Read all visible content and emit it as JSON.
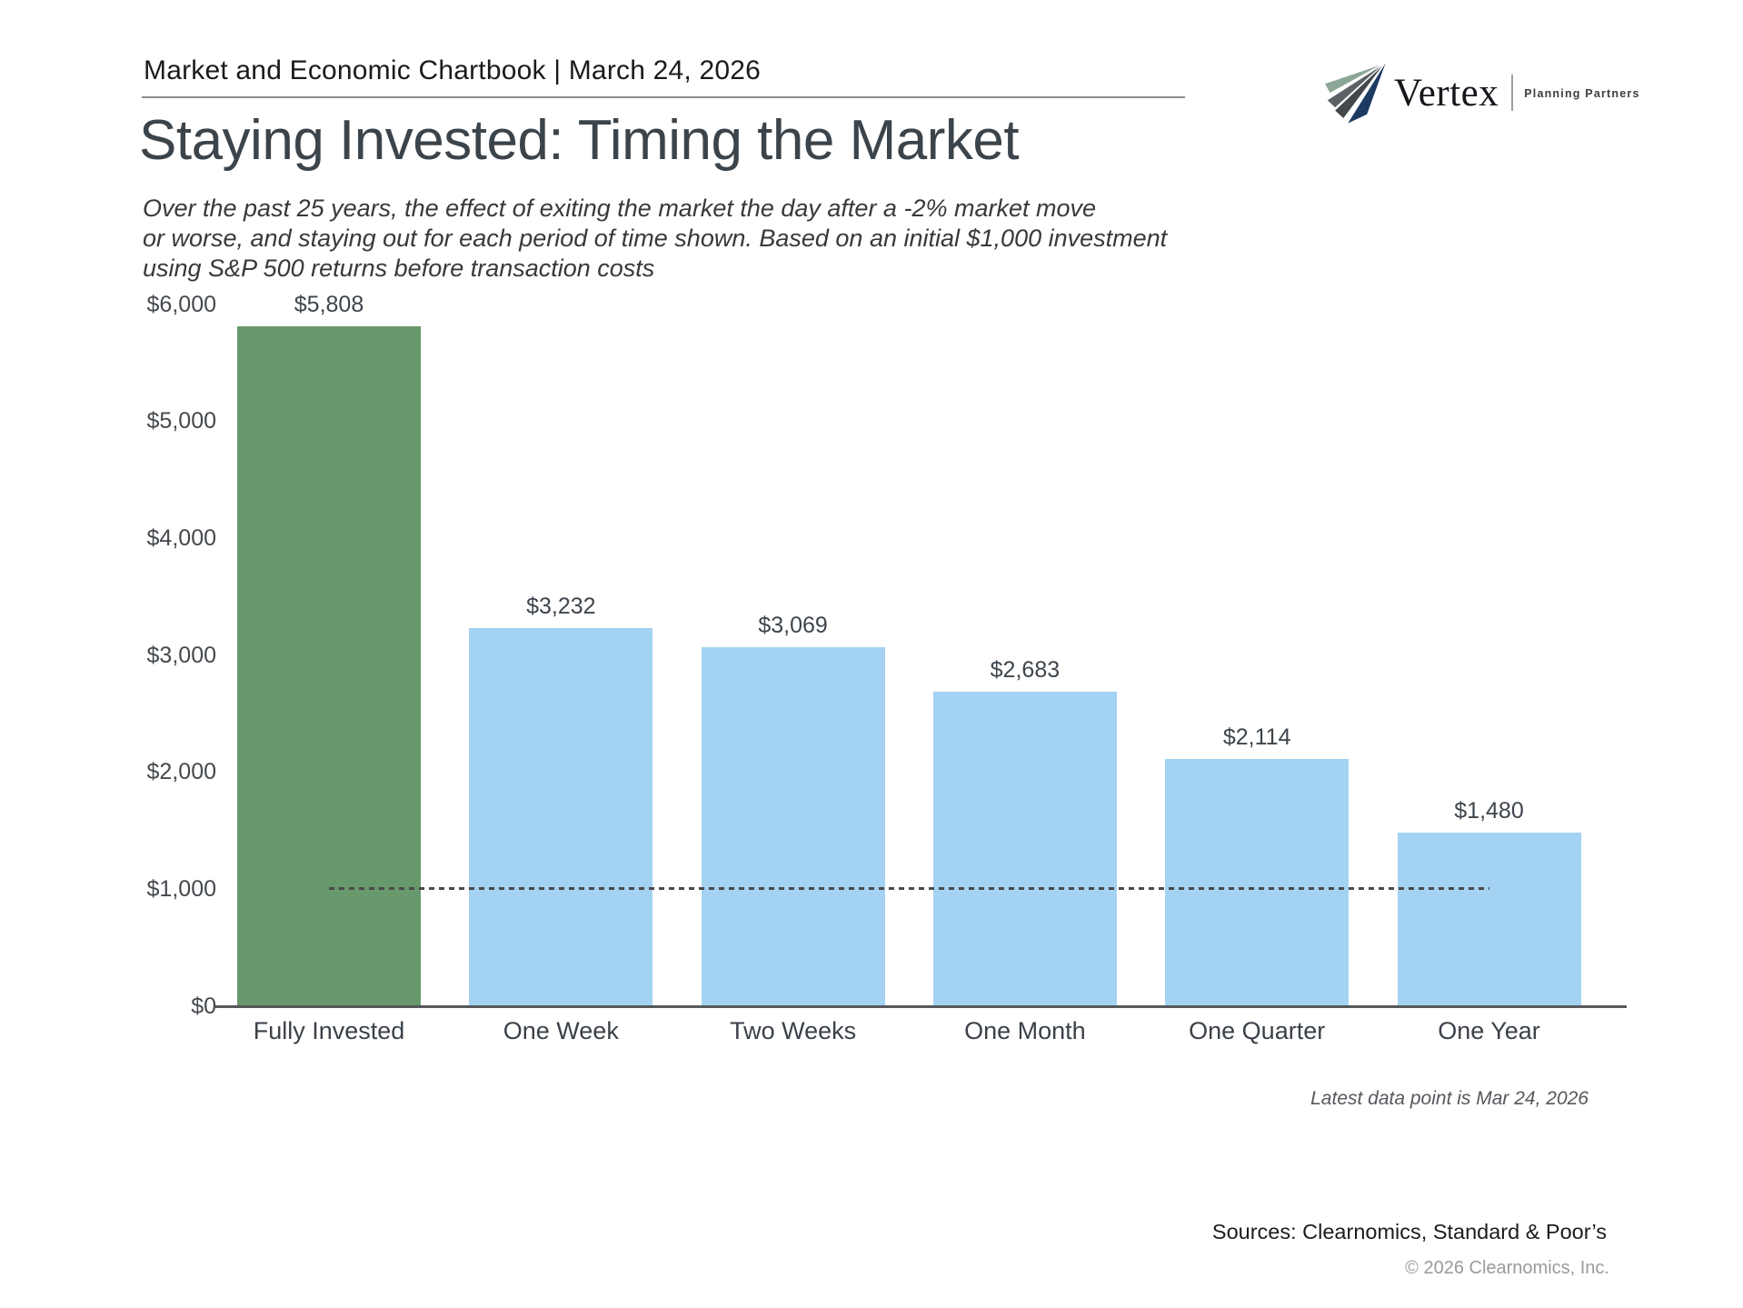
{
  "page": {
    "header": "Market and Economic Chartbook | March 24, 2026",
    "title": "Staying Invested: Timing the Market",
    "subtitle_lines": [
      "Over the past 25 years, the effect of exiting the market the day after a -2% market move",
      "or worse, and staying out for each period of time shown. Based on an initial $1,000 investment",
      "using S&P 500 returns before transaction costs"
    ],
    "footnote": "Latest data point is Mar 24, 2026",
    "sources": "Sources: Clearnomics, Standard & Poor’s",
    "copyright": "© 2026 Clearnomics, Inc."
  },
  "logo": {
    "brand": "Vertex",
    "tagline": "Planning Partners",
    "colors": {
      "sage": "#8ba696",
      "gray": "#5d6166",
      "dark_gray": "#44484c",
      "navy": "#1d3a63"
    }
  },
  "chart_data": {
    "type": "bar",
    "title": "Staying Invested: Timing the Market",
    "categories": [
      "Fully Invested",
      "One Week",
      "Two Weeks",
      "One Month",
      "One Quarter",
      "One Year"
    ],
    "values": [
      5808,
      3232,
      3069,
      2683,
      2114,
      1480
    ],
    "value_labels": [
      "$5,808",
      "$3,232",
      "$3,069",
      "$2,683",
      "$2,114",
      "$1,480"
    ],
    "bar_colors": [
      "#68996d",
      "#a3d2f2",
      "#a3d2f2",
      "#a3d2f2",
      "#a3d2f2",
      "#a3d2f2"
    ],
    "xlabel": "",
    "ylabel": "",
    "ylim": [
      0,
      6000
    ],
    "y_ticks": {
      "labels": [
        "$6,000",
        "$5,000",
        "$4,000",
        "$3,000",
        "$2,000",
        "$1,000",
        "$0"
      ],
      "values": [
        6000,
        5000,
        4000,
        3000,
        2000,
        1000,
        0
      ]
    },
    "reference_line": {
      "value": 1000,
      "style": "dotted",
      "color": "#4a4a4a"
    },
    "grid": false,
    "legend": false
  },
  "colors": {
    "accent_green": "#68996d",
    "accent_blue": "#a3d2f2",
    "title_color": "#3c444b"
  }
}
